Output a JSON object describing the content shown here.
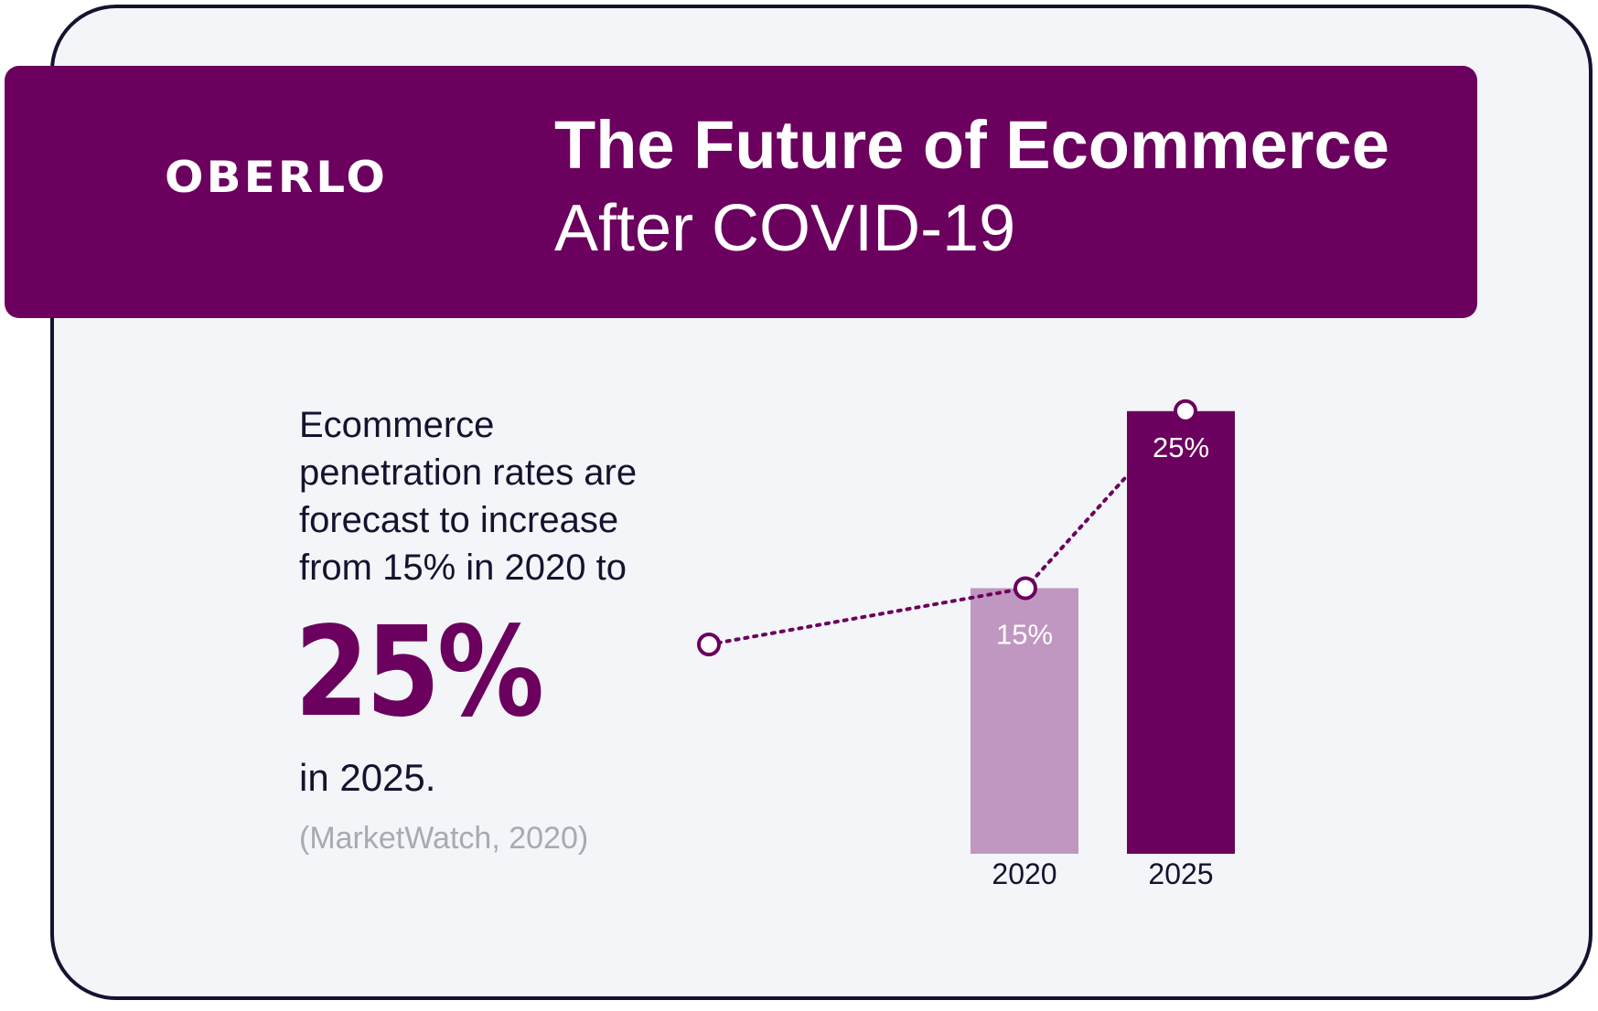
{
  "header": {
    "logo": "OBERLO",
    "title": "The Future of Ecommerce",
    "subtitle": "After COVID-19"
  },
  "description": {
    "lines": [
      "Ecommerce",
      "penetration rates are",
      "forecast to increase",
      "from 15% in 2020 to"
    ],
    "highlight": "25%",
    "after": "in 2025.",
    "source": "(MarketWatch, 2020)"
  },
  "colors": {
    "brand": "#6b005e",
    "bar_2020": "#c097c0",
    "bar_2025": "#6b005e",
    "text": "#14132f",
    "source_text": "#a9a9b3",
    "background": "#f4f5f8"
  },
  "chart_data": {
    "type": "bar",
    "categories": [
      "2020",
      "2025"
    ],
    "values": [
      15,
      25
    ],
    "data_labels": [
      "15%",
      "25%"
    ],
    "ylim": [
      0,
      25
    ],
    "grid": false,
    "overlay": "dotted trend line with circular markers"
  }
}
